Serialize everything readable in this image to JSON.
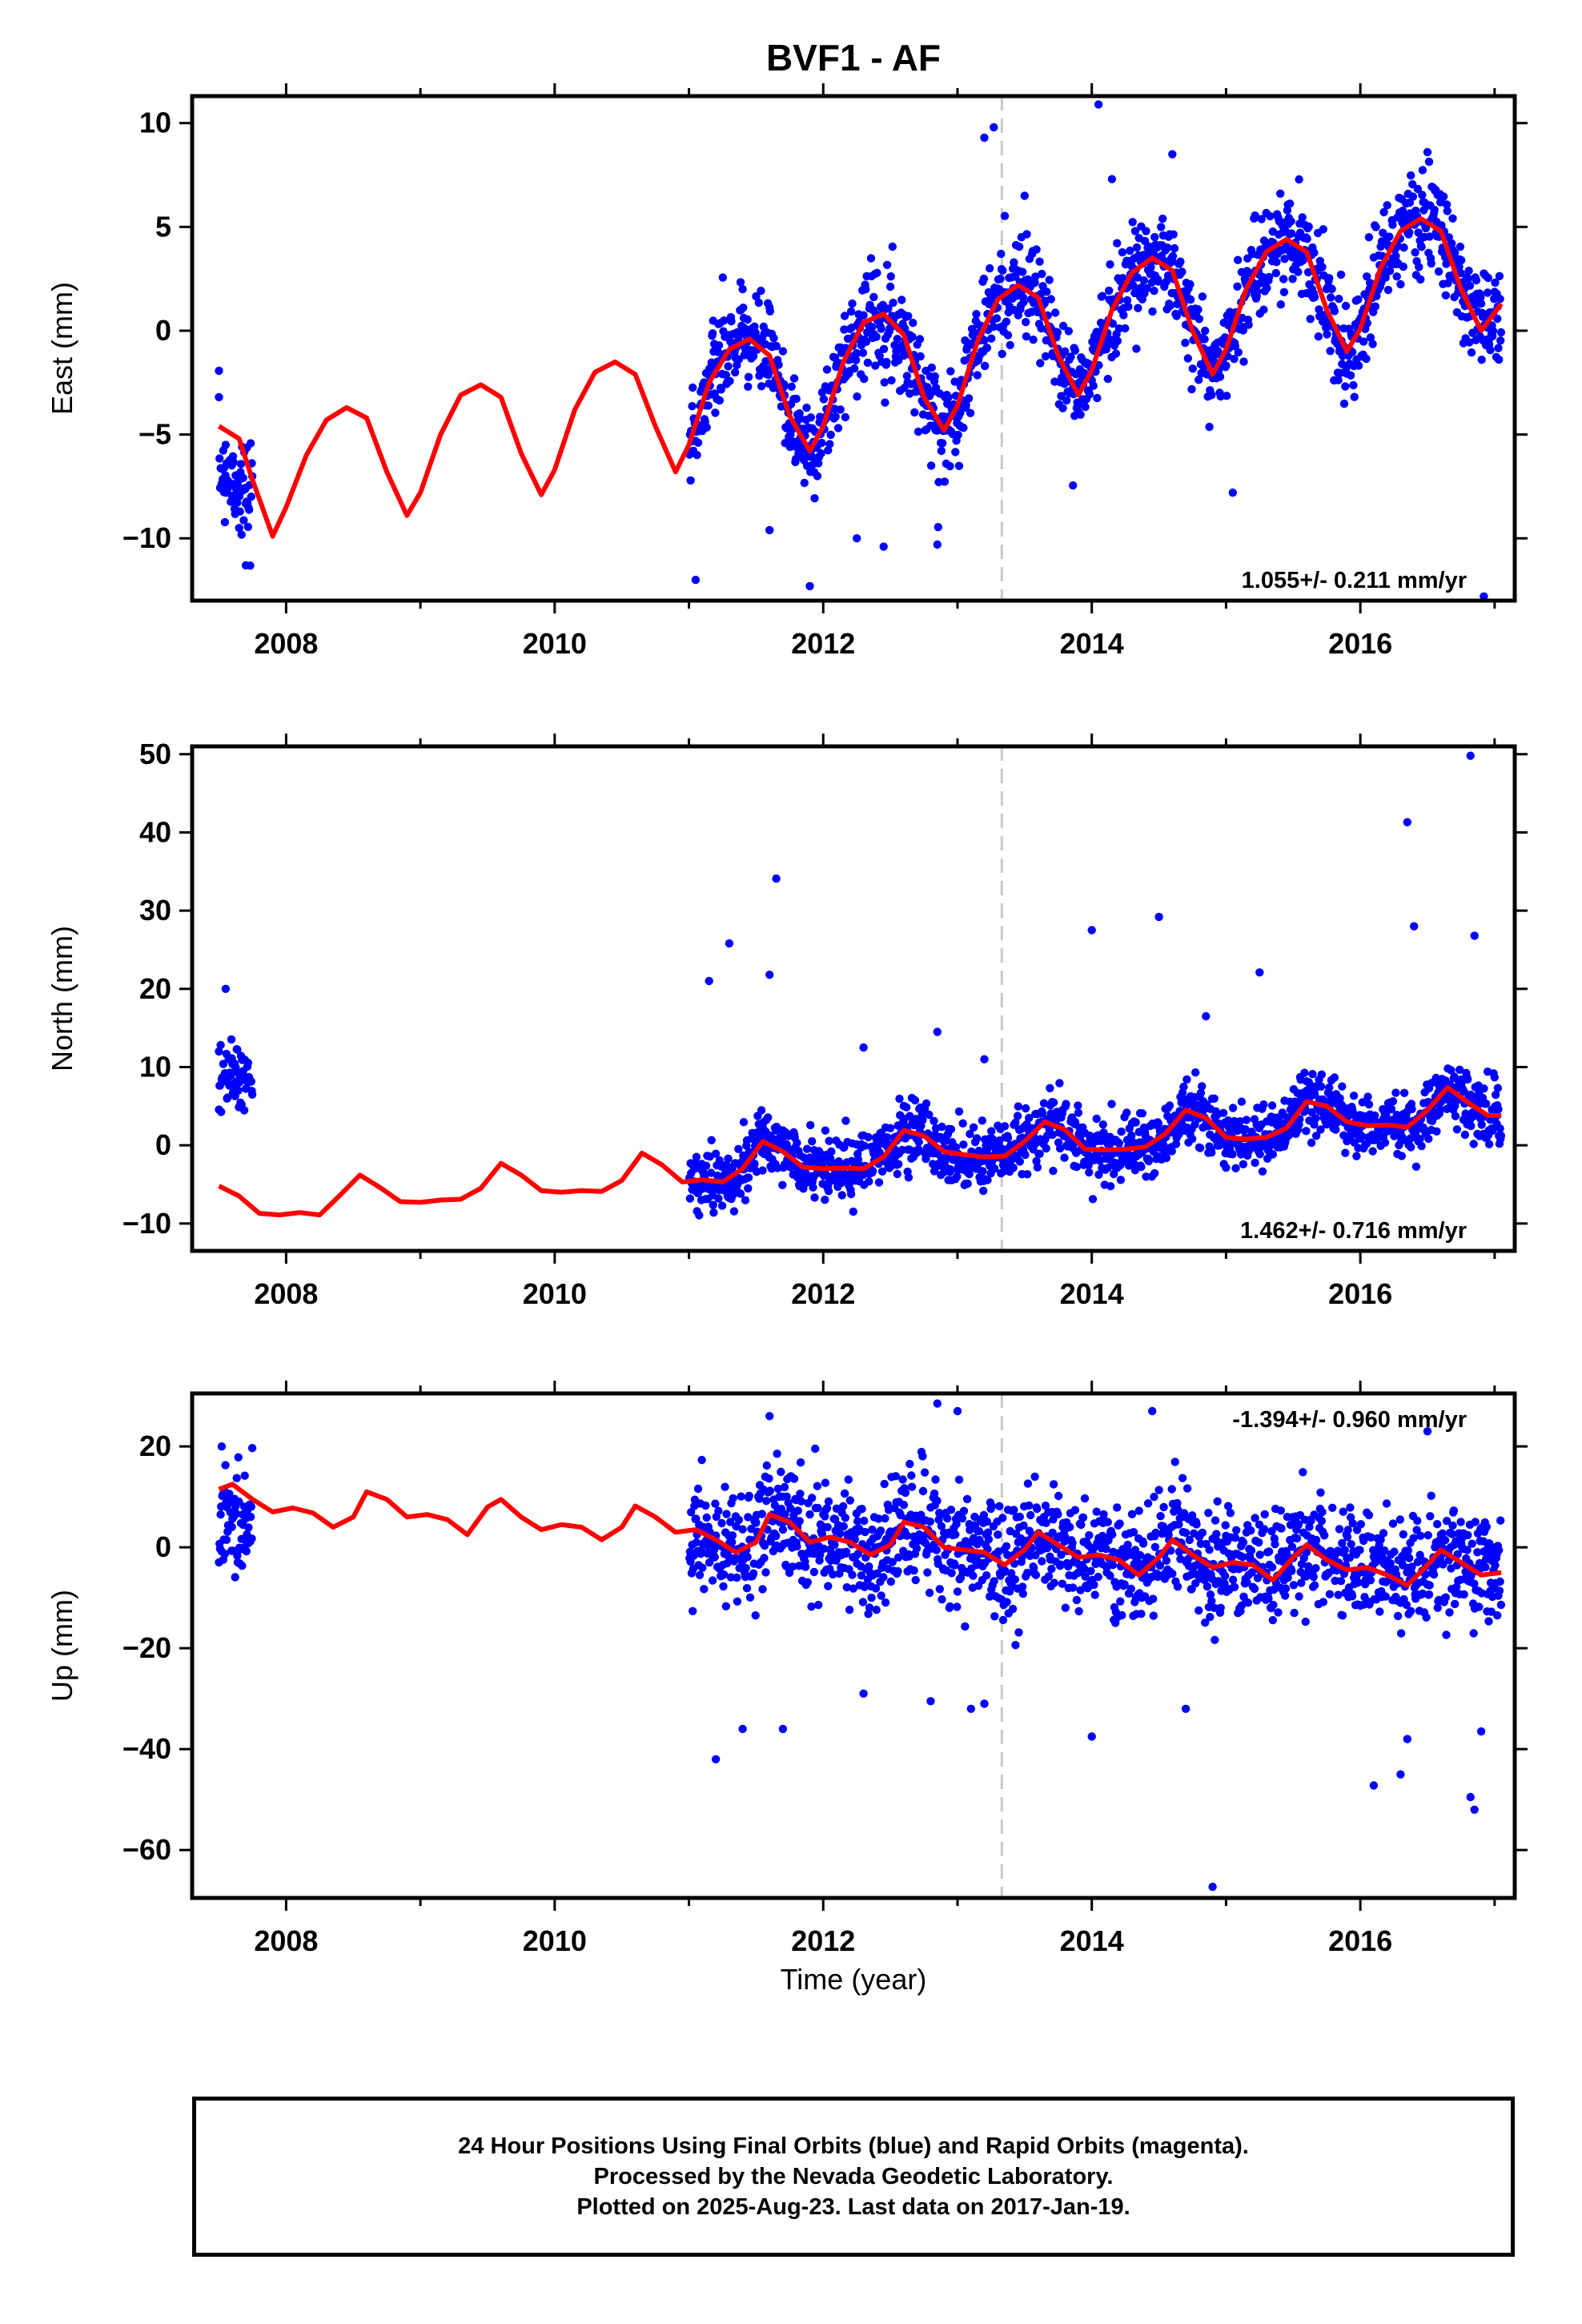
{
  "figure": {
    "title": "BVF1 - AF",
    "xlabel": "Time (year)"
  },
  "caption": {
    "line1": "24 Hour Positions Using Final Orbits (blue) and Rapid Orbits (magenta).",
    "line2": "Processed by the Nevada Geodetic Laboratory.",
    "line3": "Plotted on 2025-Aug-23. Last data on 2017-Jan-19."
  },
  "colors": {
    "points": "#0000ff",
    "fit": "#ff0000",
    "equipment_change": "#c8c8c8",
    "frame": "#000000"
  },
  "chart_data": [
    {
      "type": "scatter",
      "title": "BVF1 - AF",
      "ylabel": "East (mm)",
      "xlim": [
        2007.3,
        2017.15
      ],
      "ylim": [
        -13,
        11.3
      ],
      "yticks": [
        -10,
        -5,
        0,
        5,
        10
      ],
      "xticks": [
        2008,
        2010,
        2012,
        2014,
        2016
      ],
      "rate_label": "1.055+/- 0.211 mm/yr",
      "rate_label_pos": "bottom-right",
      "offset_line_x": 2013.33,
      "data_start": 2007.5,
      "data_gap": [
        2007.75,
        2011.0
      ],
      "data_end": 2017.05,
      "series": [
        {
          "name": "24 hour positions",
          "style": "points",
          "sample_points": [
            [
              2007.5,
              -3.2
            ],
            [
              2007.55,
              -5.5
            ],
            [
              2007.6,
              -8
            ],
            [
              2007.65,
              -9.5
            ],
            [
              2007.7,
              -11.3
            ],
            [
              2011.05,
              -12
            ],
            [
              2011.4,
              2
            ],
            [
              2011.6,
              -9.6
            ],
            [
              2011.9,
              -12.3
            ],
            [
              2012.25,
              -10
            ],
            [
              2012.45,
              -10.4
            ],
            [
              2012.85,
              -10.3
            ],
            [
              2013.2,
              9.3
            ],
            [
              2013.27,
              9.8
            ],
            [
              2013.5,
              6.5
            ],
            [
              2014.05,
              10.9
            ],
            [
              2014.15,
              7.3
            ],
            [
              2014.6,
              8.5
            ],
            [
              2015.05,
              -7.8
            ],
            [
              2016.5,
              8.6
            ],
            [
              2016.92,
              -12.8
            ]
          ]
        },
        {
          "name": "model fit",
          "style": "line",
          "x": [
            2007.5,
            2007.65,
            2007.75,
            2007.9,
            2008.0,
            2008.15,
            2008.3,
            2008.45,
            2008.6,
            2008.75,
            2008.9,
            2009.0,
            2009.15,
            2009.3,
            2009.45,
            2009.6,
            2009.75,
            2009.9,
            2010.0,
            2010.15,
            2010.3,
            2010.45,
            2010.6,
            2010.75,
            2010.9,
            2011.0,
            2011.15,
            2011.3,
            2011.45,
            2011.6,
            2011.75,
            2011.9,
            2012.0,
            2012.15,
            2012.3,
            2012.45,
            2012.6,
            2012.75,
            2012.9,
            2013.0,
            2013.15,
            2013.3,
            2013.45,
            2013.6,
            2013.75,
            2013.9,
            2014.0,
            2014.15,
            2014.3,
            2014.45,
            2014.6,
            2014.75,
            2014.9,
            2015.0,
            2015.15,
            2015.3,
            2015.45,
            2015.6,
            2015.75,
            2015.9,
            2016.0,
            2016.15,
            2016.3,
            2016.45,
            2016.6,
            2016.75,
            2016.9,
            2017.05
          ],
          "y": [
            -4.6,
            -5.2,
            -7.2,
            -9.9,
            -8.5,
            -6.0,
            -4.3,
            -3.7,
            -4.2,
            -6.8,
            -8.9,
            -7.8,
            -5.0,
            -3.1,
            -2.6,
            -3.2,
            -5.9,
            -7.9,
            -6.7,
            -3.8,
            -2.0,
            -1.5,
            -2.1,
            -4.6,
            -6.8,
            -5.5,
            -2.5,
            -0.9,
            -0.4,
            -1.2,
            -4.1,
            -5.8,
            -4.6,
            -1.5,
            0.4,
            0.8,
            -0.2,
            -3.2,
            -4.8,
            -3.6,
            -0.5,
            1.5,
            2.2,
            1.6,
            -1.2,
            -3.1,
            -1.9,
            1.0,
            2.8,
            3.5,
            2.9,
            0.0,
            -2.1,
            -0.9,
            2.0,
            3.8,
            4.4,
            3.8,
            1.0,
            -1.0,
            0.1,
            3.0,
            4.8,
            5.4,
            4.8,
            2.0,
            0.0,
            1.3
          ]
        }
      ]
    },
    {
      "type": "scatter",
      "ylabel": "North (mm)",
      "xlim": [
        2007.3,
        2017.15
      ],
      "ylim": [
        -13.5,
        51
      ],
      "yticks": [
        -10,
        0,
        10,
        20,
        30,
        40,
        50
      ],
      "xticks": [
        2008,
        2010,
        2012,
        2014,
        2016
      ],
      "rate_label": "1.462+/- 0.716 mm/yr",
      "rate_label_pos": "bottom-right",
      "offset_line_x": 2013.33,
      "data_start": 2007.5,
      "data_gap": [
        2007.75,
        2011.0
      ],
      "data_end": 2017.05,
      "series": [
        {
          "name": "24 hour positions",
          "style": "points",
          "sample_points": [
            [
              2007.55,
              20
            ],
            [
              2007.5,
              12
            ],
            [
              2007.65,
              8
            ],
            [
              2011.3,
              25.8
            ],
            [
              2011.15,
              21
            ],
            [
              2011.6,
              21.8
            ],
            [
              2011.65,
              34.1
            ],
            [
              2012.3,
              12.5
            ],
            [
              2012.85,
              14.5
            ],
            [
              2013.2,
              11
            ],
            [
              2014.0,
              27.5
            ],
            [
              2014.5,
              29.2
            ],
            [
              2014.85,
              16.5
            ],
            [
              2015.25,
              22.1
            ],
            [
              2016.35,
              41.3
            ],
            [
              2016.4,
              28
            ],
            [
              2016.85,
              26.8
            ],
            [
              2016.82,
              49.8
            ]
          ]
        },
        {
          "name": "model fit",
          "style": "line",
          "x": [
            2007.5,
            2007.65,
            2007.8,
            2007.95,
            2008.1,
            2008.25,
            2008.4,
            2008.55,
            2008.7,
            2008.85,
            2009.0,
            2009.15,
            2009.3,
            2009.45,
            2009.6,
            2009.75,
            2009.9,
            2010.05,
            2010.2,
            2010.35,
            2010.5,
            2010.65,
            2010.8,
            2010.95,
            2011.1,
            2011.25,
            2011.4,
            2011.55,
            2011.7,
            2011.85,
            2012.0,
            2012.15,
            2012.3,
            2012.45,
            2012.6,
            2012.75,
            2012.9,
            2013.05,
            2013.2,
            2013.35,
            2013.5,
            2013.65,
            2013.8,
            2013.95,
            2014.1,
            2014.25,
            2014.4,
            2014.55,
            2014.7,
            2014.85,
            2015.0,
            2015.15,
            2015.3,
            2015.45,
            2015.6,
            2015.75,
            2015.9,
            2016.05,
            2016.2,
            2016.35,
            2016.5,
            2016.65,
            2016.8,
            2016.95,
            2017.05
          ],
          "y": [
            -5.2,
            -6.5,
            -8.7,
            -8.9,
            -8.6,
            -8.9,
            -6.4,
            -3.8,
            -5.4,
            -7.2,
            -7.3,
            -7.0,
            -6.9,
            -5.5,
            -2.3,
            -3.8,
            -5.8,
            -6.0,
            -5.8,
            -5.9,
            -4.5,
            -1.0,
            -2.5,
            -4.7,
            -4.4,
            -4.7,
            -3.0,
            0.5,
            -0.8,
            -2.8,
            -3.0,
            -2.9,
            -3.0,
            -1.5,
            1.9,
            1.2,
            -0.8,
            -1.2,
            -1.5,
            -1.4,
            0.5,
            3.0,
            2.0,
            -0.5,
            -0.6,
            -0.5,
            -0.2,
            1.5,
            4.5,
            3.5,
            1.0,
            0.8,
            1.0,
            2.2,
            5.6,
            5.0,
            3.0,
            2.5,
            2.6,
            2.3,
            4.5,
            7.4,
            5.5,
            3.8,
            3.8
          ]
        }
      ]
    },
    {
      "type": "scatter",
      "ylabel": "Up (mm)",
      "xlim": [
        2007.3,
        2017.15
      ],
      "ylim": [
        -69.5,
        30.5
      ],
      "yticks": [
        -60,
        -40,
        -20,
        0,
        20
      ],
      "xticks": [
        2008,
        2010,
        2012,
        2014,
        2016
      ],
      "rate_label": "-1.394+/- 0.960 mm/yr",
      "rate_label_pos": "top-right",
      "offset_line_x": 2013.33,
      "data_start": 2007.5,
      "data_gap": [
        2007.75,
        2011.0
      ],
      "data_end": 2017.05,
      "series": [
        {
          "name": "24 hour positions",
          "style": "points",
          "sample_points": [
            [
              2007.52,
              20
            ],
            [
              2011.2,
              -42
            ],
            [
              2011.4,
              -36
            ],
            [
              2011.7,
              -36
            ],
            [
              2011.6,
              26
            ],
            [
              2012.3,
              -29
            ],
            [
              2012.85,
              28.5
            ],
            [
              2012.8,
              -30.5
            ],
            [
              2013.1,
              -32
            ],
            [
              2013.2,
              -31
            ],
            [
              2013.0,
              27
            ],
            [
              2014.0,
              -37.5
            ],
            [
              2014.45,
              27
            ],
            [
              2014.7,
              -32
            ],
            [
              2014.9,
              -67.3
            ],
            [
              2016.1,
              -47.2
            ],
            [
              2016.3,
              -45
            ],
            [
              2016.35,
              -38
            ],
            [
              2016.5,
              23
            ],
            [
              2016.82,
              -49.5
            ],
            [
              2016.85,
              -52
            ],
            [
              2016.9,
              -36.5
            ]
          ]
        },
        {
          "name": "model fit",
          "style": "line",
          "x": [
            2007.5,
            2007.6,
            2007.75,
            2007.9,
            2008.05,
            2008.2,
            2008.35,
            2008.5,
            2008.6,
            2008.75,
            2008.9,
            2009.05,
            2009.2,
            2009.35,
            2009.5,
            2009.6,
            2009.75,
            2009.9,
            2010.05,
            2010.2,
            2010.35,
            2010.5,
            2010.6,
            2010.75,
            2010.9,
            2011.05,
            2011.2,
            2011.35,
            2011.5,
            2011.6,
            2011.75,
            2011.9,
            2012.05,
            2012.2,
            2012.35,
            2012.5,
            2012.6,
            2012.75,
            2012.9,
            2013.05,
            2013.2,
            2013.35,
            2013.5,
            2013.6,
            2013.75,
            2013.9,
            2014.05,
            2014.2,
            2014.35,
            2014.5,
            2014.6,
            2014.75,
            2014.9,
            2015.05,
            2015.2,
            2015.35,
            2015.5,
            2015.6,
            2015.75,
            2015.9,
            2016.05,
            2016.2,
            2016.35,
            2016.5,
            2016.6,
            2016.75,
            2016.9,
            2017.05
          ],
          "y": [
            11.5,
            12.5,
            9.5,
            7.0,
            7.8,
            6.8,
            4.0,
            6.0,
            11.0,
            9.5,
            6.0,
            6.5,
            5.5,
            2.5,
            8.0,
            9.5,
            6.0,
            3.5,
            4.5,
            4.0,
            1.5,
            4.0,
            8.2,
            6.0,
            3.0,
            3.5,
            1.5,
            -1.0,
            1.0,
            6.5,
            5.0,
            1.0,
            2.0,
            1.0,
            -1.5,
            0.5,
            5.0,
            4.0,
            0.0,
            -0.5,
            -1.0,
            -3.5,
            -0.5,
            3.0,
            0.5,
            -2.0,
            -1.5,
            -2.5,
            -5.5,
            -2.0,
            1.5,
            -1.5,
            -4.0,
            -3.0,
            -3.5,
            -6.5,
            -2.0,
            0.5,
            -2.5,
            -4.5,
            -4.0,
            -5.5,
            -7.5,
            -3.5,
            -0.5,
            -3.0,
            -5.5,
            -5.0
          ]
        }
      ]
    }
  ]
}
